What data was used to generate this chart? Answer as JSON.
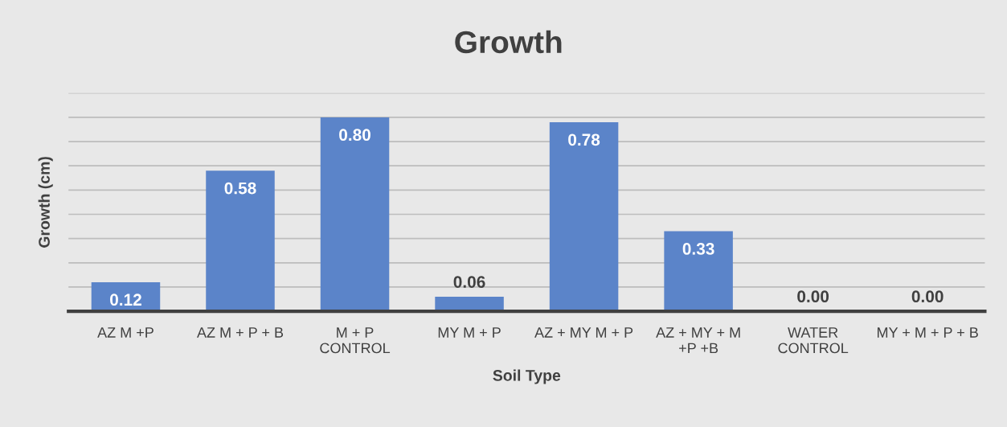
{
  "chart_data": {
    "type": "bar",
    "title": "Growth",
    "xlabel": "Soil Type",
    "ylabel": "Growth (cm)",
    "categories": [
      "AZ M +P",
      "AZ M + P + B",
      "M + P CONTROL",
      "MY M + P",
      "AZ + MY M + P",
      "AZ + MY + M +P +B",
      "WATER CONTROL",
      "MY + M + P + B"
    ],
    "values": [
      0.12,
      0.58,
      0.8,
      0.06,
      0.78,
      0.33,
      0.0,
      0.0
    ],
    "value_labels": [
      "0.12",
      "0.58",
      "0.80",
      "0.06",
      "0.78",
      "0.33",
      "0.00",
      "0.00"
    ],
    "color": "#5b84c9",
    "ylim": [
      0,
      0.9
    ],
    "yticks": [
      {
        "value": 0,
        "label": null
      },
      {
        "value": 0.1,
        "label": null
      },
      {
        "value": 0.2,
        "label": null
      },
      {
        "value": 0.3,
        "label": null
      },
      {
        "value": 0.4,
        "label": null
      },
      {
        "value": 0.5,
        "label": null
      },
      {
        "value": 0.6,
        "label": null
      },
      {
        "value": 0.7,
        "label": null
      },
      {
        "value": 0.8,
        "label": null
      },
      {
        "value": 0.9,
        "label": null
      }
    ],
    "grid": "y",
    "tick_labels": "x"
  }
}
